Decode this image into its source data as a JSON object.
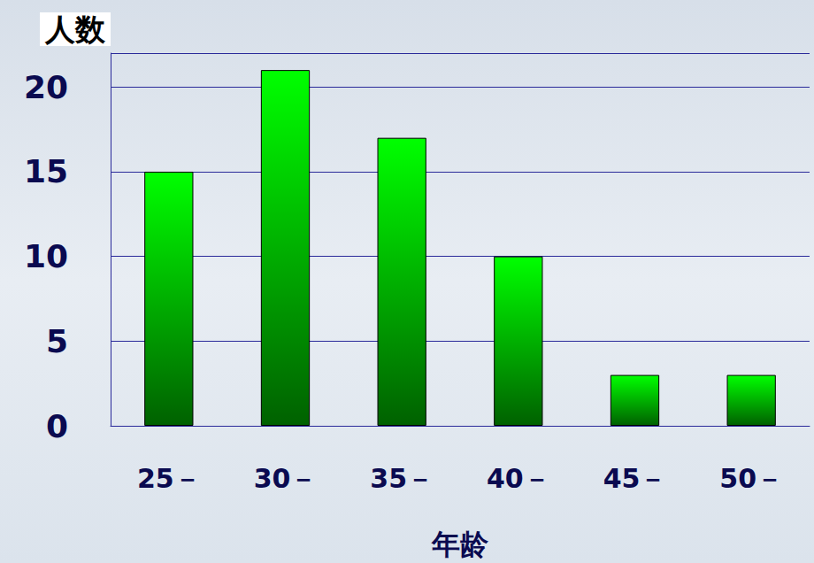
{
  "chart_data": {
    "type": "bar",
    "ylabel": "人数",
    "xlabel": "年龄",
    "categories": [
      "25－",
      "30－",
      "35－",
      "40－",
      "45－",
      "50－"
    ],
    "values": [
      15,
      21,
      17,
      10,
      3,
      3
    ],
    "color": "#00ff00",
    "ylim": [
      0,
      22
    ],
    "yticks": [
      0,
      5,
      10,
      15,
      20
    ],
    "grid": true
  }
}
